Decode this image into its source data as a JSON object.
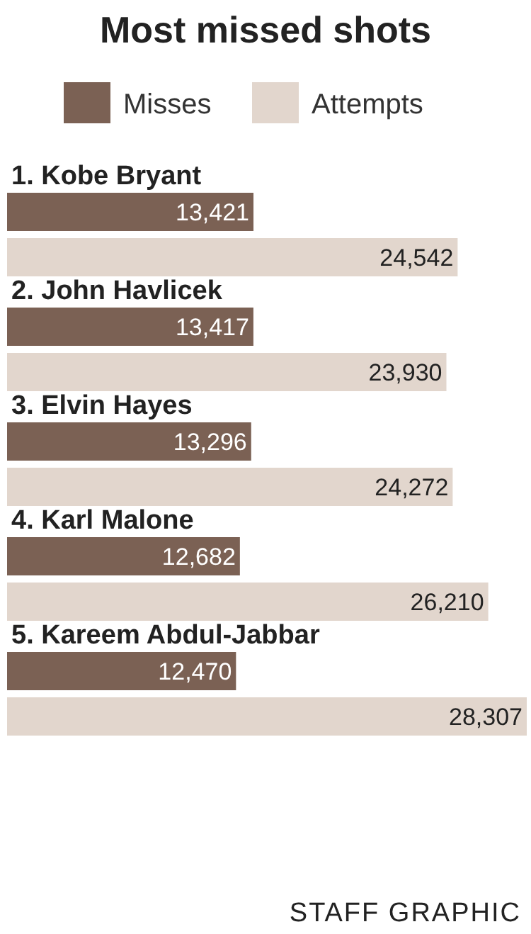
{
  "chart_data": {
    "type": "bar",
    "orientation": "horizontal",
    "title": "Most missed shots",
    "categories": [
      "1. Kobe Bryant",
      "2. John Havlicek",
      "3. Elvin Hayes",
      "4. Karl Malone",
      "5. Kareem Abdul-Jabbar"
    ],
    "series": [
      {
        "name": "Misses",
        "color": "#7b6154",
        "values": [
          13421,
          13417,
          13296,
          12682,
          12470
        ],
        "value_labels": [
          "13,421",
          "13,417",
          "13,296",
          "12,682",
          "12,470"
        ]
      },
      {
        "name": "Attempts",
        "color": "#e2d6cd",
        "values": [
          24542,
          23930,
          24272,
          26210,
          28307
        ],
        "value_labels": [
          "24,542",
          "23,930",
          "24,272",
          "26,210",
          "28,307"
        ]
      }
    ],
    "legend": "top",
    "annotations": [
      "STAFF GRAPHIC"
    ]
  }
}
